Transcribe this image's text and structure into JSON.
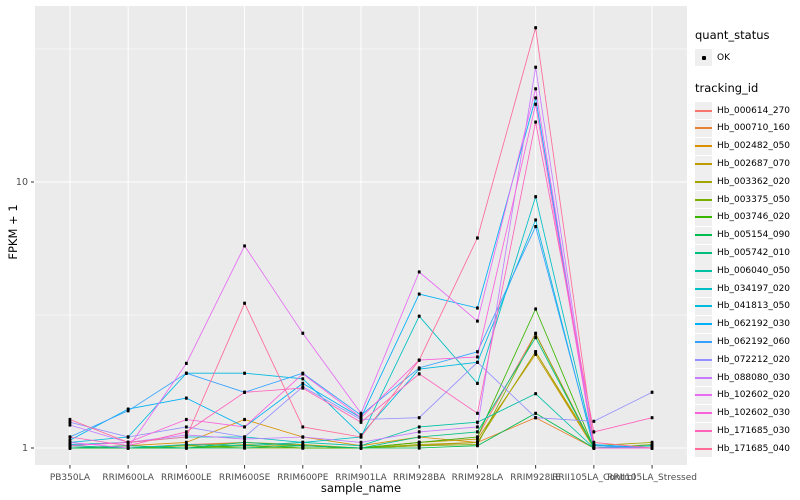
{
  "figure": {
    "xlabel": "sample_name",
    "ylabel": "FPKM + 1"
  },
  "legend": {
    "quant_status_title": "quant_status",
    "quant_status_items": [
      "OK"
    ],
    "tracking_id_title": "tracking_id"
  },
  "colors": {
    "panel_bg": "#EBEBEB",
    "grid_major": "#FFFFFF",
    "grid_minor": "#F7F7F7",
    "tick_text": "#4D4D4D",
    "tick_mark": "#333333",
    "point": "#000000",
    "legend_key_bg": "#EFEFEF"
  },
  "chart_data": {
    "type": "line",
    "title": "",
    "xlabel": "sample_name",
    "ylabel": "FPKM + 1",
    "y_scale": "log10",
    "y_ticks": [
      1,
      10
    ],
    "y_minor_ticks": [
      3.162,
      31.62
    ],
    "ylim": [
      0.86,
      46
    ],
    "grid": true,
    "legend_position": "right",
    "point_marker": "black-square",
    "categories": [
      "PB350LA",
      "RRIM600LA",
      "RRIM600LE",
      "RRIM600SE",
      "RRIM600PE",
      "RRIM901LA",
      "RRIM928BA",
      "RRIM928LA",
      "RRIM928LE",
      "RRII105LA_Control",
      "RRII105LA_Stressed"
    ],
    "series": [
      {
        "name": "Hb_000614_270",
        "color": "#F8766D",
        "values": [
          1.02,
          1.0,
          1.03,
          1.05,
          1.02,
          1.0,
          1.05,
          1.1,
          2.7,
          1.0,
          1.0
        ]
      },
      {
        "name": "Hb_000710_160",
        "color": "#EA8331",
        "values": [
          1.0,
          1.0,
          1.0,
          1.02,
          1.0,
          1.0,
          1.02,
          1.05,
          1.3,
          1.0,
          1.0
        ]
      },
      {
        "name": "Hb_002482_050",
        "color": "#D89000",
        "values": [
          1.0,
          1.02,
          1.05,
          1.28,
          1.1,
          1.02,
          1.1,
          1.05,
          2.3,
          1.0,
          1.02
        ]
      },
      {
        "name": "Hb_002687_070",
        "color": "#C09B00",
        "values": [
          1.0,
          1.0,
          1.02,
          1.05,
          1.03,
          1.0,
          1.05,
          1.08,
          2.25,
          1.0,
          1.0
        ]
      },
      {
        "name": "Hb_003362_020",
        "color": "#A3A500",
        "values": [
          1.0,
          1.0,
          1.0,
          1.03,
          1.02,
          1.0,
          1.03,
          1.05,
          2.3,
          1.02,
          1.05
        ]
      },
      {
        "name": "Hb_003375_050",
        "color": "#7CAE00",
        "values": [
          1.0,
          1.0,
          1.02,
          1.0,
          1.0,
          1.0,
          1.02,
          1.03,
          2.68,
          1.0,
          1.03
        ]
      },
      {
        "name": "Hb_003746_020",
        "color": "#39B600",
        "values": [
          1.0,
          1.0,
          1.0,
          1.02,
          1.0,
          1.0,
          1.05,
          1.1,
          3.33,
          1.0,
          1.0
        ]
      },
      {
        "name": "Hb_005154_090",
        "color": "#00BB4E",
        "values": [
          1.0,
          1.0,
          1.0,
          1.0,
          1.02,
          1.0,
          1.0,
          1.02,
          1.35,
          1.0,
          1.02
        ]
      },
      {
        "name": "Hb_005742_010",
        "color": "#00BF7D",
        "values": [
          1.0,
          1.02,
          1.0,
          1.05,
          1.02,
          1.0,
          1.1,
          1.15,
          2.6,
          1.0,
          1.0
        ]
      },
      {
        "name": "Hb_006040_050",
        "color": "#00C1A3",
        "values": [
          1.02,
          1.0,
          1.03,
          1.02,
          1.05,
          1.02,
          1.2,
          1.25,
          1.6,
          1.0,
          1.02
        ]
      },
      {
        "name": "Hb_034197_020",
        "color": "#00BFC4",
        "values": [
          1.03,
          1.05,
          1.1,
          1.1,
          1.05,
          1.1,
          3.13,
          1.75,
          8.8,
          1.02,
          1.0
        ]
      },
      {
        "name": "Hb_041813_050",
        "color": "#00BAE0",
        "values": [
          1.05,
          1.1,
          1.91,
          1.91,
          1.82,
          1.12,
          1.98,
          2.1,
          7.2,
          1.0,
          1.02
        ]
      },
      {
        "name": "Hb_062192_030",
        "color": "#00B0F6",
        "values": [
          1.07,
          1.4,
          1.54,
          1.2,
          1.75,
          1.3,
          3.79,
          3.36,
          20.7,
          1.03,
          1.0
        ]
      },
      {
        "name": "Hb_062192_060",
        "color": "#35A2FF",
        "values": [
          1.1,
          1.38,
          1.91,
          1.62,
          1.91,
          1.33,
          2.0,
          2.3,
          6.8,
          1.02,
          1.0
        ]
      },
      {
        "name": "Hb_072212_020",
        "color": "#9590FF",
        "values": [
          1.25,
          1.1,
          1.2,
          1.1,
          1.7,
          1.28,
          1.3,
          2.1,
          1.3,
          1.26,
          1.62
        ]
      },
      {
        "name": "Hb_088080_030",
        "color": "#C77CFF",
        "values": [
          1.22,
          1.05,
          1.12,
          1.08,
          1.1,
          1.05,
          1.15,
          1.2,
          27.0,
          1.0,
          1.0
        ]
      },
      {
        "name": "Hb_102602_020",
        "color": "#E76BF3",
        "values": [
          1.05,
          1.0,
          2.08,
          5.75,
          2.7,
          1.35,
          4.59,
          3.0,
          22.4,
          1.0,
          1.0
        ]
      },
      {
        "name": "Hb_102602_030",
        "color": "#FA62DB",
        "values": [
          1.02,
          1.05,
          1.28,
          1.2,
          1.9,
          1.3,
          2.14,
          2.2,
          19.6,
          1.0,
          1.0
        ]
      },
      {
        "name": "Hb_171685_030",
        "color": "#FF62BC",
        "values": [
          1.1,
          1.02,
          1.15,
          1.62,
          1.68,
          1.25,
          1.9,
          1.35,
          16.8,
          1.15,
          1.3
        ]
      },
      {
        "name": "Hb_171685_040",
        "color": "#FF6A98",
        "values": [
          1.28,
          1.05,
          1.1,
          3.5,
          1.2,
          1.1,
          2.14,
          6.16,
          38.0,
          1.05,
          1.0
        ]
      }
    ]
  }
}
